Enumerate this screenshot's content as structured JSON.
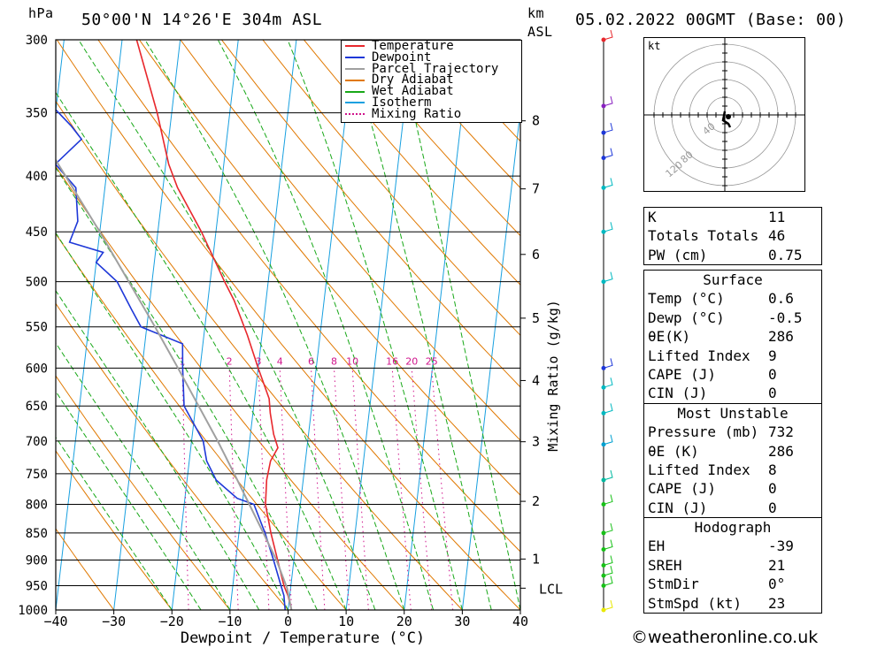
{
  "header": {
    "pressure_unit": "hPa",
    "location": "50°00'N 14°26'E 304m ASL",
    "km_label": "km",
    "asl_label": "ASL",
    "datetime": "05.02.2022 00GMT (Base: 00)"
  },
  "legend": [
    "Temperature",
    "Dewpoint",
    "Parcel Trajectory",
    "Dry Adiabat",
    "Wet Adiabat",
    "Isotherm",
    "Mixing Ratio"
  ],
  "colors": {
    "temperature": "#e8282d",
    "dewpoint": "#1e38d8",
    "parcel": "#a0a0a0",
    "dry_adiabat": "#e07800",
    "wet_adiabat": "#18a818",
    "isotherm": "#18a0e0",
    "mixing_ratio": "#d0148c"
  },
  "chart_data": {
    "type": "line",
    "xlabel": "Dewpoint / Temperature (°C)",
    "ylabel": "hPa",
    "y2label": "Mixing Ratio (g/kg)",
    "x_ticks": [
      -40,
      -30,
      -20,
      -10,
      0,
      10,
      20,
      30,
      40
    ],
    "pressure_ticks": [
      300,
      350,
      400,
      450,
      500,
      550,
      600,
      650,
      700,
      750,
      800,
      850,
      900,
      950,
      1000
    ],
    "km_ticks": [
      {
        "km": "1",
        "p": 898
      },
      {
        "km": "2",
        "p": 795
      },
      {
        "km": "3",
        "p": 701
      },
      {
        "km": "4",
        "p": 616
      },
      {
        "km": "5",
        "p": 540
      },
      {
        "km": "6",
        "p": 472
      },
      {
        "km": "7",
        "p": 411
      },
      {
        "km": "8",
        "p": 356
      }
    ],
    "lcl_label": "LCL",
    "lcl_p": 955,
    "mixing_ratio_labels": [
      "1",
      "2",
      "3",
      "4",
      "6",
      "8",
      "10",
      "16",
      "20",
      "25"
    ],
    "series": [
      {
        "name": "Temperature",
        "points": [
          [
            1000,
            0.6
          ],
          [
            970,
            -0.3
          ],
          [
            950,
            -1.2
          ],
          [
            900,
            -2.8
          ],
          [
            850,
            -4.5
          ],
          [
            800,
            -6.0
          ],
          [
            760,
            -6.3
          ],
          [
            730,
            -6.0
          ],
          [
            710,
            -5.0
          ],
          [
            690,
            -6.0
          ],
          [
            660,
            -7.0
          ],
          [
            640,
            -7.5
          ],
          [
            600,
            -10.0
          ],
          [
            560,
            -12.5
          ],
          [
            520,
            -15.5
          ],
          [
            500,
            -17.5
          ],
          [
            450,
            -22.5
          ],
          [
            410,
            -27.5
          ],
          [
            390,
            -29.5
          ],
          [
            350,
            -32.5
          ],
          [
            300,
            -37.5
          ]
        ]
      },
      {
        "name": "Dewpoint",
        "points": [
          [
            1000,
            -0.5
          ],
          [
            970,
            -1.0
          ],
          [
            950,
            -1.7
          ],
          [
            900,
            -3.5
          ],
          [
            850,
            -5.5
          ],
          [
            800,
            -8.0
          ],
          [
            790,
            -11.0
          ],
          [
            760,
            -15.0
          ],
          [
            730,
            -17.0
          ],
          [
            700,
            -18.0
          ],
          [
            650,
            -22.0
          ],
          [
            600,
            -23.0
          ],
          [
            570,
            -23.5
          ],
          [
            550,
            -31.0
          ],
          [
            530,
            -33.0
          ],
          [
            500,
            -36.0
          ],
          [
            480,
            -40.0
          ],
          [
            470,
            -39.0
          ],
          [
            460,
            -45.0
          ],
          [
            440,
            -44.0
          ],
          [
            410,
            -45.0
          ],
          [
            390,
            -49.0
          ],
          [
            370,
            -45.0
          ],
          [
            360,
            -47.0
          ],
          [
            340,
            -52.0
          ],
          [
            300,
            -65.0
          ]
        ]
      },
      {
        "name": "Parcel Trajectory",
        "points": [
          [
            1000,
            0.6
          ],
          [
            955,
            -0.6
          ],
          [
            900,
            -3.0
          ],
          [
            850,
            -5.8
          ],
          [
            800,
            -8.8
          ],
          [
            750,
            -12.0
          ],
          [
            700,
            -15.5
          ],
          [
            650,
            -19.5
          ],
          [
            600,
            -23.8
          ],
          [
            550,
            -28.6
          ],
          [
            500,
            -34.0
          ],
          [
            450,
            -40.0
          ],
          [
            400,
            -47.0
          ],
          [
            350,
            -55.0
          ],
          [
            300,
            -64.0
          ]
        ]
      }
    ],
    "wind_dots": [
      [
        1000,
        "#e8e800"
      ],
      [
        950,
        "#18c018"
      ],
      [
        930,
        "#18c018"
      ],
      [
        910,
        "#18c018"
      ],
      [
        880,
        "#18c018"
      ],
      [
        850,
        "#18c018"
      ],
      [
        800,
        "#18c018"
      ],
      [
        760,
        "#00b8a0"
      ],
      [
        705,
        "#00a0d0"
      ],
      [
        660,
        "#00b8c0"
      ],
      [
        625,
        "#00b8c0"
      ],
      [
        600,
        "#1e38d8"
      ],
      [
        500,
        "#00b8c0"
      ],
      [
        450,
        "#00b8c0"
      ],
      [
        410,
        "#00b8c0"
      ],
      [
        385,
        "#1e38d8"
      ],
      [
        365,
        "#1e38d8"
      ],
      [
        345,
        "#8820c0"
      ],
      [
        300,
        "#e8282d"
      ]
    ]
  },
  "hodograph": {
    "unit": "kt",
    "ring_labels": [
      "120",
      "80",
      "40"
    ]
  },
  "indices": [
    {
      "label": "K",
      "value": "11"
    },
    {
      "label": "Totals Totals",
      "value": "46"
    },
    {
      "label": "PW (cm)",
      "value": "0.75"
    }
  ],
  "surface": {
    "title": "Surface",
    "rows": [
      {
        "label": "Temp (°C)",
        "value": "0.6"
      },
      {
        "label": "Dewp (°C)",
        "value": "-0.5"
      },
      {
        "label": "θE(K)",
        "value": "286"
      },
      {
        "label": "Lifted Index",
        "value": "9"
      },
      {
        "label": "CAPE (J)",
        "value": "0"
      },
      {
        "label": "CIN (J)",
        "value": "0"
      }
    ]
  },
  "unstable": {
    "title": "Most Unstable",
    "rows": [
      {
        "label": "Pressure (mb)",
        "value": "732"
      },
      {
        "label": "θE (K)",
        "value": "286"
      },
      {
        "label": "Lifted Index",
        "value": "8"
      },
      {
        "label": "CAPE (J)",
        "value": "0"
      },
      {
        "label": "CIN (J)",
        "value": "0"
      }
    ]
  },
  "hodo_stats": {
    "title": "Hodograph",
    "rows": [
      {
        "label": "EH",
        "value": "-39"
      },
      {
        "label": "SREH",
        "value": "21"
      },
      {
        "label": "StmDir",
        "value": "0°"
      },
      {
        "label": "StmSpd (kt)",
        "value": "23"
      }
    ]
  },
  "credit": "©weatheronline.co.uk"
}
